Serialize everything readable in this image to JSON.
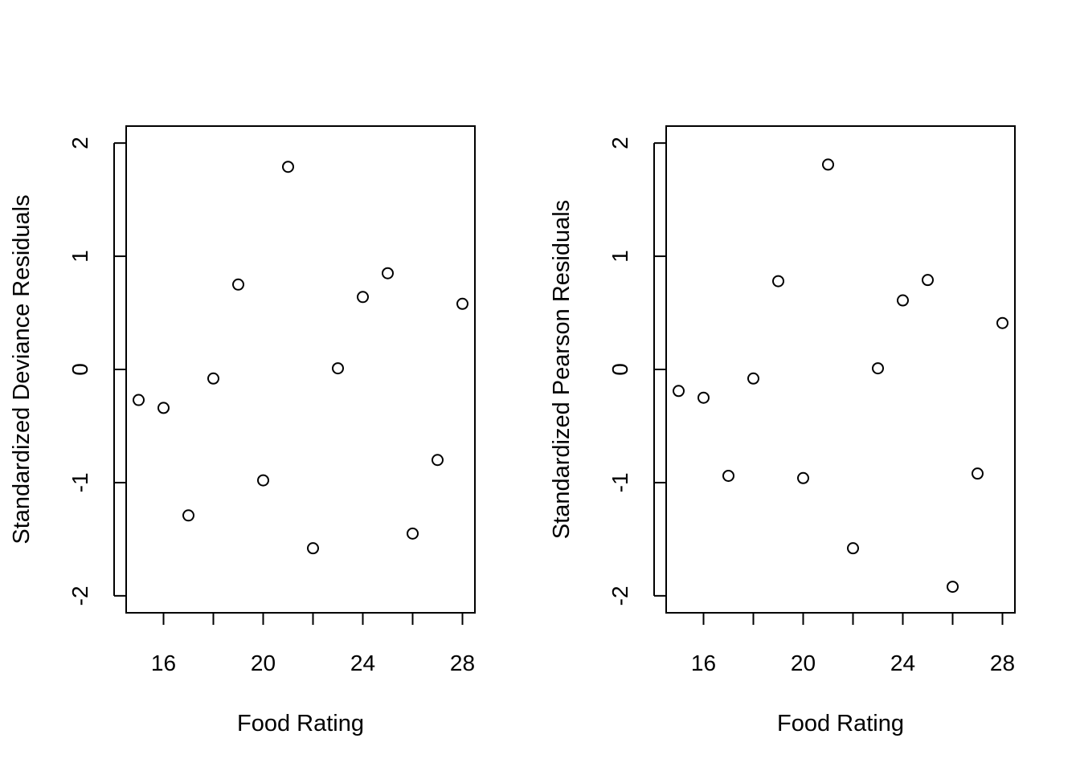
{
  "chart_data": [
    {
      "type": "scatter",
      "title": "",
      "xlabel": "Food Rating",
      "ylabel": "Standardized Deviance Residuals",
      "xlim": [
        14.5,
        28.5
      ],
      "ylim": [
        -2.15,
        2.15
      ],
      "xticks": [
        16,
        18,
        20,
        22,
        24,
        26,
        28
      ],
      "xtick_labels": [
        "16",
        "",
        "20",
        "",
        "24",
        "",
        "28"
      ],
      "yticks": [
        -2,
        -1,
        0,
        1,
        2
      ],
      "ytick_labels": [
        "-2",
        "-1",
        "0",
        "1",
        "2"
      ],
      "grid": false,
      "x": [
        15,
        16,
        17,
        18,
        19,
        20,
        21,
        22,
        23,
        24,
        25,
        26,
        27,
        28
      ],
      "y": [
        -0.27,
        -0.34,
        -1.29,
        -0.08,
        0.75,
        -0.98,
        1.79,
        -1.58,
        0.01,
        0.64,
        0.85,
        -1.45,
        -0.8,
        0.58
      ]
    },
    {
      "type": "scatter",
      "title": "",
      "xlabel": "Food Rating",
      "ylabel": "Standardized Pearson Residuals",
      "xlim": [
        14.5,
        28.5
      ],
      "ylim": [
        -2.15,
        2.15
      ],
      "xticks": [
        16,
        18,
        20,
        22,
        24,
        26,
        28
      ],
      "xtick_labels": [
        "16",
        "",
        "20",
        "",
        "24",
        "",
        "28"
      ],
      "yticks": [
        -2,
        -1,
        0,
        1,
        2
      ],
      "ytick_labels": [
        "-2",
        "-1",
        "0",
        "1",
        "2"
      ],
      "grid": false,
      "x": [
        15,
        16,
        17,
        18,
        19,
        20,
        21,
        22,
        23,
        24,
        25,
        26,
        27,
        28
      ],
      "y": [
        -0.19,
        -0.25,
        -0.94,
        -0.08,
        0.78,
        -0.96,
        1.81,
        -1.58,
        0.01,
        0.61,
        0.79,
        -1.92,
        -0.92,
        0.41
      ]
    }
  ]
}
